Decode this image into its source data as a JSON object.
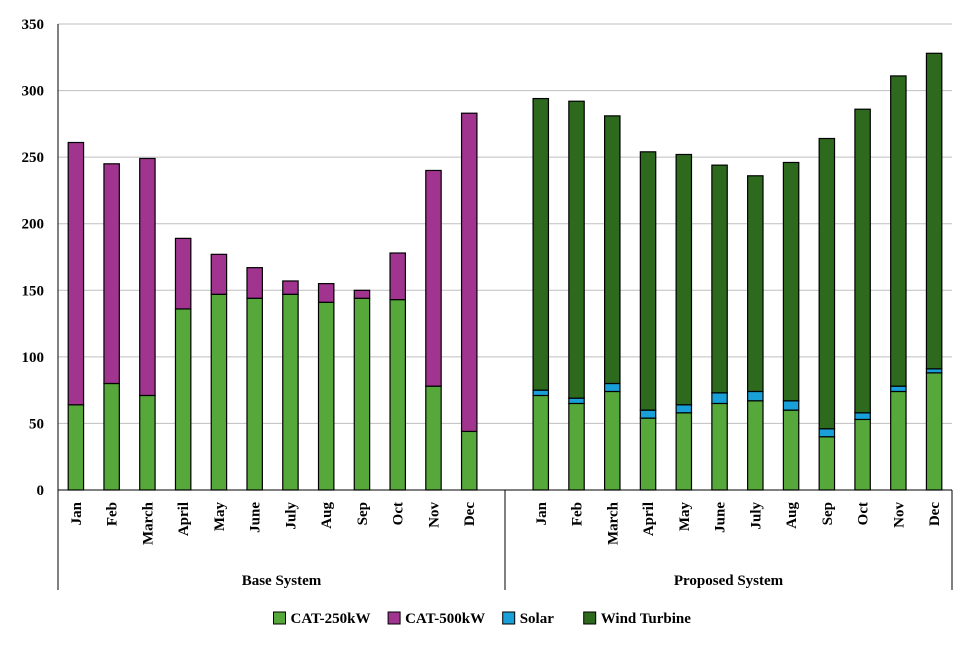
{
  "chart_data": {
    "type": "bar",
    "stacked": true,
    "grid": true,
    "legend_position": "bottom",
    "ylim": [
      0,
      350
    ],
    "yticks": [
      0,
      50,
      100,
      150,
      200,
      250,
      300,
      350
    ],
    "groups": [
      {
        "name": "Base System",
        "categories": [
          "Jan",
          "Feb",
          "March",
          "April",
          "May",
          "June",
          "July",
          "Aug",
          "Sep",
          "Oct",
          "Nov",
          "Dec"
        ],
        "series": [
          {
            "name": "CAT-250kW",
            "values": [
              64,
              80,
              71,
              136,
              147,
              144,
              147,
              141,
              144,
              143,
              78,
              44
            ]
          },
          {
            "name": "CAT-500kW",
            "values": [
              197,
              165,
              178,
              53,
              30,
              23,
              10,
              14,
              6,
              35,
              162,
              239
            ]
          },
          {
            "name": "Solar",
            "values": [
              0,
              0,
              0,
              0,
              0,
              0,
              0,
              0,
              0,
              0,
              0,
              0
            ]
          },
          {
            "name": "Wind Turbine",
            "values": [
              0,
              0,
              0,
              0,
              0,
              0,
              0,
              0,
              0,
              0,
              0,
              0
            ]
          }
        ]
      },
      {
        "name": "Proposed System",
        "categories": [
          "Jan",
          "Feb",
          "March",
          "April",
          "May",
          "June",
          "July",
          "Aug",
          "Sep",
          "Oct",
          "Nov",
          "Dec"
        ],
        "series": [
          {
            "name": "CAT-250kW",
            "values": [
              71,
              65,
              74,
              54,
              58,
              65,
              67,
              60,
              40,
              53,
              74,
              88
            ]
          },
          {
            "name": "CAT-500kW",
            "values": [
              0,
              0,
              0,
              0,
              0,
              0,
              0,
              0,
              0,
              0,
              0,
              0
            ]
          },
          {
            "name": "Solar",
            "values": [
              4,
              4,
              6,
              6,
              6,
              8,
              7,
              7,
              6,
              5,
              4,
              3
            ]
          },
          {
            "name": "Wind Turbine",
            "values": [
              219,
              223,
              201,
              194,
              188,
              171,
              162,
              179,
              218,
              228,
              233,
              237
            ]
          }
        ]
      }
    ],
    "legend": [
      {
        "name": "CAT-250kW",
        "color": "#56a83a"
      },
      {
        "name": "CAT-500kW",
        "color": "#a0348e"
      },
      {
        "name": "Solar",
        "color": "#1aa0d8"
      },
      {
        "name": "Wind Turbine",
        "color": "#2d6a1e"
      }
    ]
  }
}
